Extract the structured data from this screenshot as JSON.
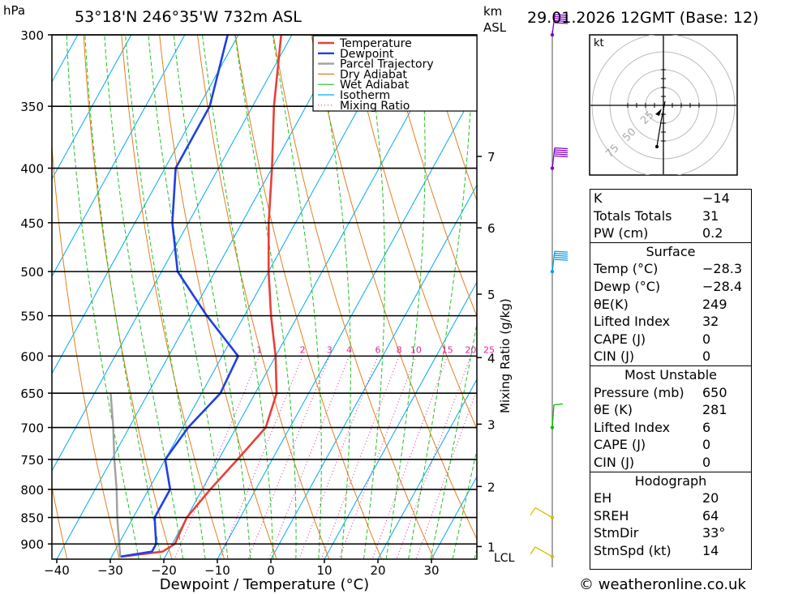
{
  "header": {
    "unit_hpa": "hPa",
    "location": "53°18'N 246°35'W 732m ASL",
    "km_label": "km",
    "asl_label": "ASL",
    "datetime": "29.01.2026 12GMT (Base: 12)"
  },
  "chart_data": {
    "type": "skew-t log-p",
    "xlabel": "Dewpoint / Temperature (°C)",
    "ylabel": "hPa",
    "secondary_ylabel": "Mixing Ratio (g/kg)",
    "xlim": [
      -40,
      38
    ],
    "plim": [
      930,
      300
    ],
    "x_ticks": [
      -40,
      -30,
      -20,
      -10,
      0,
      10,
      20,
      30
    ],
    "pressure_levels": [
      300,
      350,
      400,
      450,
      500,
      550,
      600,
      650,
      700,
      750,
      800,
      850,
      900
    ],
    "km_ticks": [
      {
        "label": "7",
        "p": 390
      },
      {
        "label": "6",
        "p": 455
      },
      {
        "label": "5",
        "p": 525
      },
      {
        "label": "4",
        "p": 602
      },
      {
        "label": "3",
        "p": 695
      },
      {
        "label": "2",
        "p": 795
      },
      {
        "label": "1",
        "p": 905
      }
    ],
    "lcl_label": "LCL",
    "mixing_ratio_labels": [
      "1",
      "2",
      "3",
      "4",
      "6",
      "8",
      "10",
      "15",
      "20",
      "25"
    ],
    "mixing_ratio_values": [
      1,
      2,
      3,
      4,
      6,
      8,
      10,
      15,
      20,
      25
    ],
    "legend": [
      "Temperature",
      "Dewpoint",
      "Parcel Trajectory",
      "Dry Adiabat",
      "Wet Adiabat",
      "Isotherm",
      "Mixing Ratio"
    ],
    "series": [
      {
        "name": "Temperature",
        "color": "#e8403a",
        "points": [
          [
            925,
            -28.3
          ],
          [
            915,
            -21
          ],
          [
            900,
            -19.5
          ],
          [
            850,
            -20
          ],
          [
            800,
            -18.5
          ],
          [
            750,
            -16.5
          ],
          [
            700,
            -14.5
          ],
          [
            650,
            -16
          ],
          [
            600,
            -20
          ],
          [
            550,
            -25
          ],
          [
            500,
            -30
          ],
          [
            450,
            -35
          ],
          [
            400,
            -40
          ],
          [
            350,
            -46
          ],
          [
            300,
            -52
          ]
        ]
      },
      {
        "name": "Dewpoint",
        "color": "#2040e0",
        "points": [
          [
            925,
            -28.4
          ],
          [
            915,
            -23
          ],
          [
            900,
            -23
          ],
          [
            850,
            -26
          ],
          [
            800,
            -26
          ],
          [
            750,
            -30
          ],
          [
            700,
            -29
          ],
          [
            650,
            -26.5
          ],
          [
            600,
            -27
          ],
          [
            550,
            -37
          ],
          [
            500,
            -47
          ],
          [
            450,
            -53
          ],
          [
            400,
            -58
          ],
          [
            350,
            -58
          ],
          [
            300,
            -62
          ]
        ]
      },
      {
        "name": "Parcel Trajectory",
        "color": "#a0a0a0",
        "points": [
          [
            925,
            -28.4
          ],
          [
            850,
            -33
          ],
          [
            800,
            -36
          ],
          [
            750,
            -39.5
          ],
          [
            700,
            -43
          ],
          [
            650,
            -47
          ]
        ]
      }
    ],
    "wind_barbs": [
      {
        "p": 300,
        "color": "#8000c0"
      },
      {
        "p": 400,
        "color": "#8000c0"
      },
      {
        "p": 500,
        "color": "#00a0e0"
      },
      {
        "p": 700,
        "color": "#00c000"
      },
      {
        "p": 850,
        "color": "#d0c000"
      },
      {
        "p": 925,
        "color": "#d0c000"
      }
    ],
    "hodograph": {
      "unit_label": "kt",
      "ring_labels": [
        "25",
        "50",
        "75"
      ]
    }
  },
  "indices": {
    "general": [
      {
        "label": "K",
        "value": "−14"
      },
      {
        "label": "Totals Totals",
        "value": "31"
      },
      {
        "label": "PW (cm)",
        "value": "0.2"
      }
    ],
    "surface_title": "Surface",
    "surface": [
      {
        "label": "Temp (°C)",
        "value": "−28.3"
      },
      {
        "label": "Dewp (°C)",
        "value": "−28.4"
      },
      {
        "label": "θE(K)",
        "value": "249"
      },
      {
        "label": "Lifted Index",
        "value": "32"
      },
      {
        "label": "CAPE (J)",
        "value": "0"
      },
      {
        "label": "CIN (J)",
        "value": "0"
      }
    ],
    "unstable_title": "Most Unstable",
    "unstable": [
      {
        "label": "Pressure (mb)",
        "value": "650"
      },
      {
        "label": "θE (K)",
        "value": "281"
      },
      {
        "label": "Lifted Index",
        "value": "6"
      },
      {
        "label": "CAPE (J)",
        "value": "0"
      },
      {
        "label": "CIN (J)",
        "value": "0"
      }
    ],
    "hodo_title": "Hodograph",
    "hodo": [
      {
        "label": "EH",
        "value": "20"
      },
      {
        "label": "SREH",
        "value": "64"
      },
      {
        "label": "StmDir",
        "value": "33°"
      },
      {
        "label": "StmSpd (kt)",
        "value": "14"
      }
    ]
  },
  "footer": {
    "copyright": "© weatheronline.co.uk"
  }
}
